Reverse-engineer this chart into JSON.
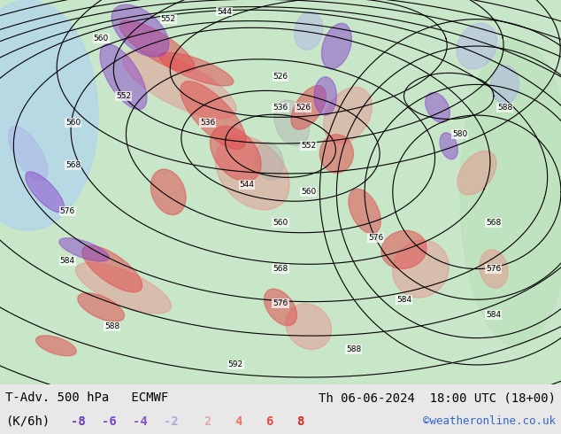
{
  "title_left": "T-Adv. 500 hPa   ECMWF",
  "title_right": "Th 06-06-2024  18:00 UTC (18+00)",
  "subtitle_left": "(K/6h)",
  "legend_values": [
    "-8",
    "-6",
    "-4",
    "-2",
    "2",
    "4",
    "6",
    "8"
  ],
  "legend_colors": [
    "#6633cc",
    "#6633cc",
    "#6633cc",
    "#6633cc",
    "#ff9999",
    "#ff6666",
    "#ff3333",
    "#ff0000"
  ],
  "negative_color": "#6633cc",
  "positive_color": "#ff4444",
  "credit": "©weatheronline.co.uk",
  "credit_color": "#3366cc",
  "bg_color": "#e8e8e8",
  "map_bg": "#d4edbc",
  "fig_width": 6.34,
  "fig_height": 4.9,
  "bottom_bar_height": 0.115,
  "bottom_bar_color": "#d0d0d0",
  "title_fontsize": 10,
  "legend_fontsize": 10,
  "credit_fontsize": 9
}
